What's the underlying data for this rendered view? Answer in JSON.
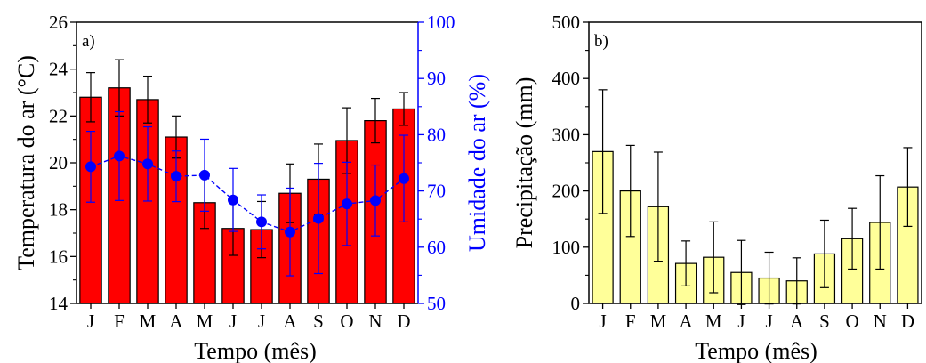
{
  "chart_data": [
    {
      "panel_label": "a)",
      "type": "bar",
      "categories": [
        "J",
        "F",
        "M",
        "A",
        "M",
        "J",
        "J",
        "A",
        "S",
        "O",
        "N",
        "D"
      ],
      "xlabel": "Tempo (mês)",
      "ylabel": "Temperatura do ar (°C)",
      "ylim": [
        14,
        26
      ],
      "yticks": [
        14,
        16,
        18,
        20,
        22,
        24,
        26
      ],
      "y2label": "Umidade do ar (%)",
      "y2lim": [
        50,
        100
      ],
      "y2ticks": [
        50,
        60,
        70,
        80,
        90,
        100
      ],
      "grid": false,
      "series": [
        {
          "type": "bar",
          "axis": "left",
          "color": "#ff0000",
          "values": [
            22.8,
            23.2,
            22.7,
            21.1,
            18.3,
            17.2,
            17.15,
            18.7,
            19.3,
            20.95,
            21.8,
            22.3
          ],
          "error": [
            1.05,
            1.2,
            1.0,
            0.9,
            1.1,
            1.15,
            1.2,
            1.25,
            1.5,
            1.4,
            0.95,
            0.7
          ]
        },
        {
          "type": "line",
          "axis": "right",
          "color": "#0000ff",
          "marker": "circle",
          "dashed": true,
          "values": [
            74.3,
            76.2,
            74.8,
            72.6,
            72.8,
            68.4,
            64.5,
            62.7,
            65.1,
            67.7,
            68.3,
            72.2
          ],
          "error": [
            6.3,
            7.9,
            6.6,
            4.5,
            6.4,
            5.6,
            4.8,
            7.8,
            9.8,
            7.4,
            6.3,
            7.7
          ]
        }
      ]
    },
    {
      "panel_label": "b)",
      "type": "bar",
      "categories": [
        "J",
        "F",
        "M",
        "A",
        "M",
        "J",
        "J",
        "A",
        "S",
        "O",
        "N",
        "D"
      ],
      "xlabel": "Tempo (mês)",
      "ylabel": "Precipitação (mm)",
      "ylim": [
        0,
        500
      ],
      "yticks": [
        0,
        100,
        200,
        300,
        400,
        500
      ],
      "grid": false,
      "series": [
        {
          "type": "bar",
          "color": "#ffff99",
          "values": [
            270,
            200,
            172,
            71,
            82,
            55,
            45,
            40,
            88,
            115,
            144,
            207
          ],
          "error": [
            110,
            81,
            97,
            40,
            63,
            57,
            46,
            41,
            60,
            54,
            83,
            70
          ]
        }
      ]
    }
  ]
}
